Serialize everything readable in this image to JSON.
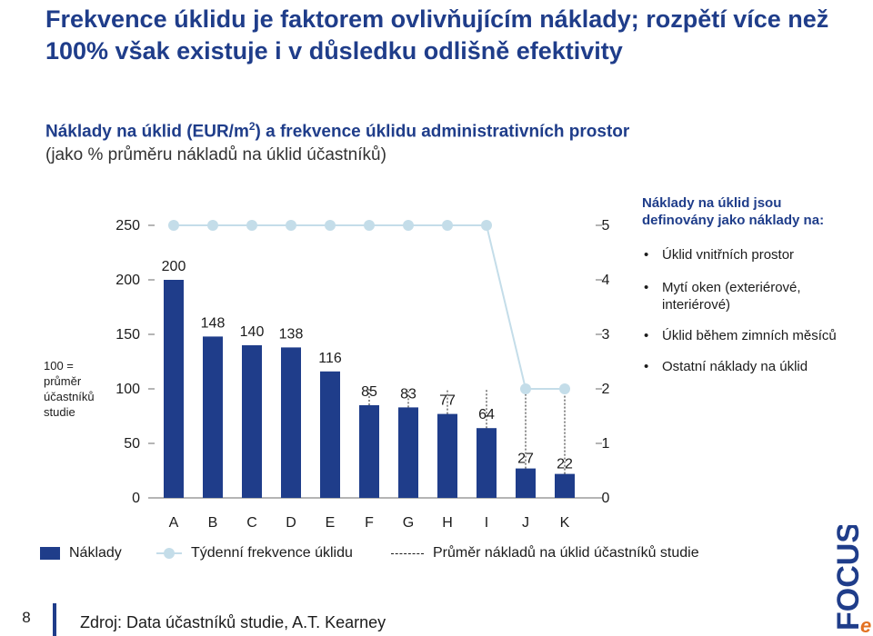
{
  "title": "Frekvence úklidu je faktorem ovlivňujícím náklady; rozpětí více než 100% však existuje i v důsledku odlišně efektivity",
  "subtitle": {
    "line1_a": "Náklady na úklid (EUR/m",
    "line1_sup": "2",
    "line1_b": ") a frekvence úklidu administrativních prostor",
    "line2": "(jako % průměru nákladů na úklid účastníků)"
  },
  "side_note": "100 = průměr účastníků studie",
  "definition": {
    "heading": "Náklady na úklid jsou definovány jako náklady na:",
    "items": [
      "Úklid vnitřních prostor",
      "Mytí oken (exteriérové, interiérové)",
      "Úklid během zimních měsíců",
      "Ostatní náklady na úklid"
    ]
  },
  "legend": {
    "bars": "Náklady",
    "line": "Týdenní frekvence úklidu",
    "dashed": "Průměr nákladů na úklid účastníků studie"
  },
  "footer": {
    "page_number": "8",
    "source": "Zdroj: Data účastníků studie, A.T. Kearney"
  },
  "logo": {
    "letter": "e",
    "word": "FOCUS"
  },
  "colors": {
    "bars": "#1f3d8a",
    "line": "#c4dde9",
    "title": "#1f3d8a"
  },
  "chart_data": {
    "type": "bar",
    "categories": [
      "A",
      "B",
      "C",
      "D",
      "E",
      "F",
      "G",
      "H",
      "I",
      "J",
      "K"
    ],
    "series": [
      {
        "name": "Náklady",
        "values": [
          200,
          148,
          140,
          138,
          116,
          85,
          83,
          77,
          64,
          27,
          22
        ],
        "axis": "left"
      },
      {
        "name": "Týdenní frekvence úklidu",
        "values": [
          5,
          5,
          5,
          5,
          5,
          5,
          5,
          5,
          5,
          2,
          2
        ],
        "axis": "right",
        "type": "line"
      }
    ],
    "reference_line": {
      "name": "Průměr nákladů na úklid účastníků studie",
      "value": 100
    },
    "y_left": {
      "ticks": [
        0,
        50,
        100,
        150,
        200,
        250
      ],
      "ylim": [
        0,
        250
      ]
    },
    "y_right": {
      "ticks": [
        0,
        1,
        2,
        3,
        4,
        5
      ],
      "ylim": [
        0,
        5
      ]
    },
    "grid": false,
    "legend_position": "bottom"
  }
}
